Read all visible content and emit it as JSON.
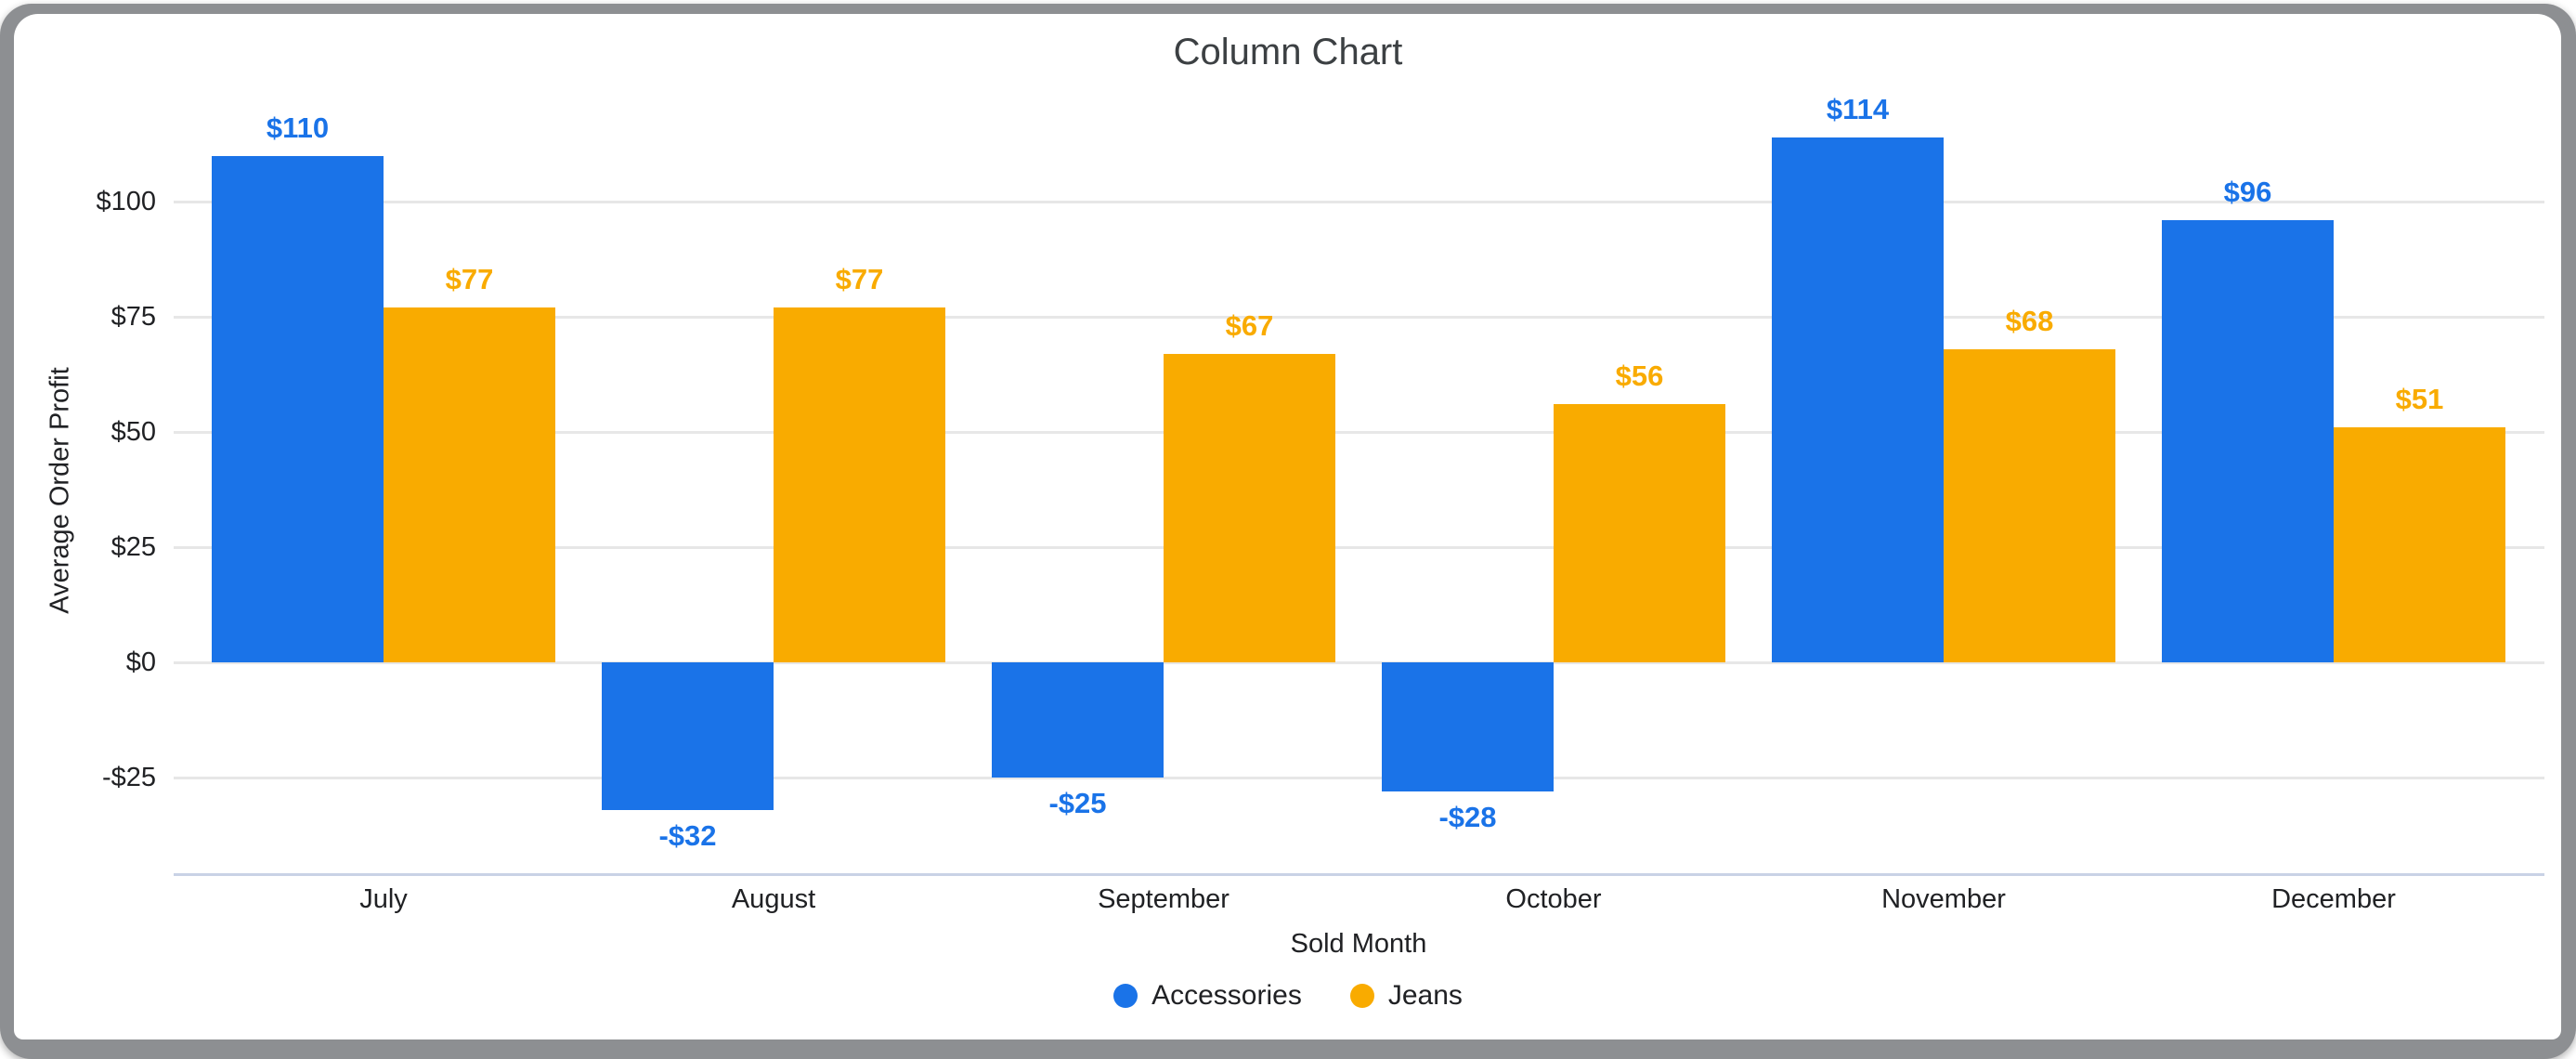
{
  "window": {
    "frame_color": "#8d8f92",
    "card_background": "#ffffff"
  },
  "chart_data": {
    "type": "bar",
    "title": "Column Chart",
    "xlabel": "Sold Month",
    "ylabel": "Average Order Profit",
    "categories": [
      "July",
      "August",
      "September",
      "October",
      "November",
      "December"
    ],
    "series": [
      {
        "name": "Accessories",
        "color": "#1a73e8",
        "values": [
          110,
          -32,
          -25,
          -28,
          114,
          96
        ],
        "labels": [
          "$110",
          "-$32",
          "-$25",
          "-$28",
          "$114",
          "$96"
        ]
      },
      {
        "name": "Jeans",
        "color": "#f9ab00",
        "values": [
          77,
          77,
          67,
          56,
          68,
          51
        ],
        "labels": [
          "$77",
          "$77",
          "$67",
          "$56",
          "$68",
          "$51"
        ]
      }
    ],
    "y_axis": {
      "tick_values": [
        100,
        75,
        50,
        25,
        0,
        -25
      ],
      "tick_labels": [
        "$100",
        "$75",
        "$50",
        "$25",
        "$0",
        "-$25"
      ],
      "min": -46,
      "max": 120,
      "grid": true
    },
    "legend": {
      "position": "bottom",
      "entries": [
        "Accessories",
        "Jeans"
      ]
    },
    "style": {
      "gridline_color": "#e7e7e7",
      "baseline_color": "#c9d2e6",
      "text_color": "#202124",
      "title_color": "#3c4043"
    }
  }
}
